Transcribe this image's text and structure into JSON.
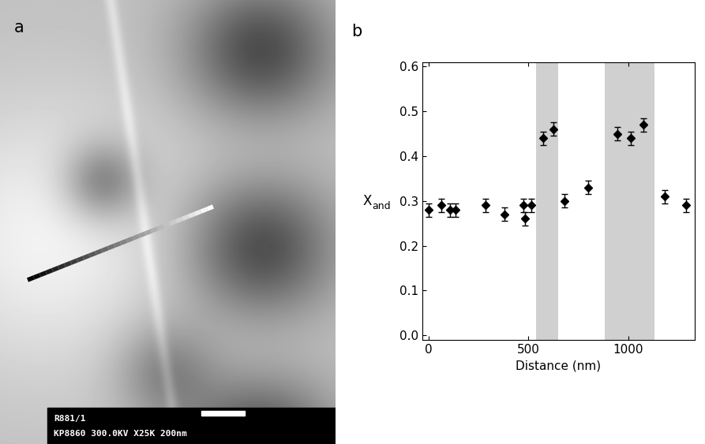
{
  "panel_labels": [
    "a",
    "b"
  ],
  "micrograph": {
    "info_lines": [
      "R881/1",
      "KP8860 300.0KV X25K 200nm"
    ]
  },
  "chart_data": {
    "type": "scatter",
    "xlabel": "Distance (nm)",
    "ylabel": "X",
    "ylabel_subscript": "and",
    "x": [
      0,
      65,
      110,
      135,
      285,
      380,
      475,
      485,
      515,
      575,
      625,
      680,
      800,
      945,
      1010,
      1075,
      1180,
      1290
    ],
    "values": [
      0.28,
      0.29,
      0.28,
      0.28,
      0.29,
      0.27,
      0.29,
      0.26,
      0.29,
      0.44,
      0.46,
      0.3,
      0.33,
      0.45,
      0.44,
      0.47,
      0.31,
      0.29
    ],
    "errors": [
      0.015,
      0.015,
      0.015,
      0.015,
      0.015,
      0.015,
      0.015,
      0.015,
      0.015,
      0.015,
      0.015,
      0.015,
      0.015,
      0.015,
      0.015,
      0.015,
      0.015,
      0.015
    ],
    "shaded_regions": [
      [
        540,
        650
      ],
      [
        880,
        1130
      ]
    ],
    "color": "#000000",
    "marker": "diamond",
    "xlim": [
      -30,
      1330
    ],
    "xticks": [
      0,
      500,
      1000
    ],
    "ylim": [
      -0.01,
      0.61
    ],
    "yticks": [
      0.0,
      0.1,
      0.2,
      0.3,
      0.4,
      0.5,
      0.6
    ],
    "grid": false
  }
}
